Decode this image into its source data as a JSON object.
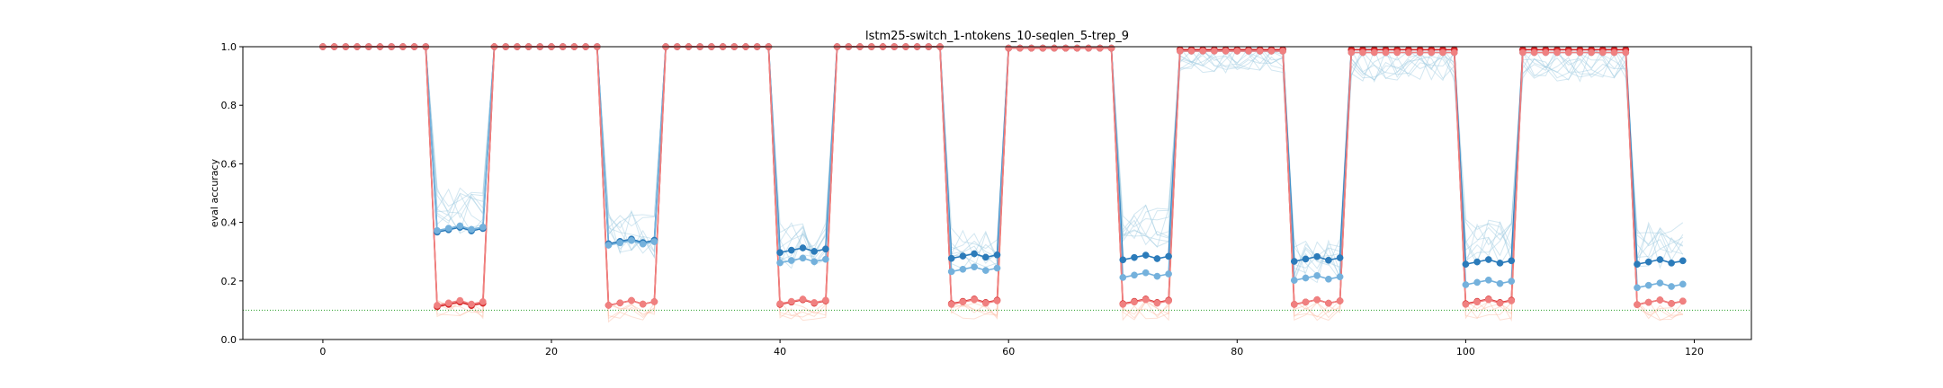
{
  "chart_data": {
    "type": "line",
    "title": "lstm25-switch_1-ntokens_10-seqlen_5-trep_9",
    "xlabel": "",
    "ylabel": "eval accuracy",
    "xlim": [
      -7,
      125
    ],
    "ylim": [
      0.0,
      1.0
    ],
    "xticks": [
      0,
      20,
      40,
      60,
      80,
      100,
      120
    ],
    "yticks": [
      0.0,
      0.2,
      0.4,
      0.6,
      0.8,
      1.0
    ],
    "xtick_labels": [
      "0",
      "20",
      "40",
      "60",
      "80",
      "100",
      "120"
    ],
    "ytick_labels": [
      "0.0",
      "0.2",
      "0.4",
      "0.6",
      "0.8",
      "1.0"
    ],
    "reference_line": {
      "y": 0.1,
      "color": "#2ca02c",
      "style": "dotted"
    },
    "segment_levels": {
      "phase_a_blocks": [
        [
          0,
          9
        ],
        [
          15,
          24
        ],
        [
          30,
          39
        ],
        [
          45,
          54
        ],
        [
          60,
          69
        ],
        [
          75,
          84
        ],
        [
          90,
          99
        ],
        [
          105,
          114
        ]
      ],
      "phase_b_blocks": [
        [
          10,
          14
        ],
        [
          25,
          29
        ],
        [
          40,
          44
        ],
        [
          55,
          59
        ],
        [
          70,
          74
        ],
        [
          85,
          89
        ],
        [
          100,
          104
        ],
        [
          115,
          119
        ]
      ],
      "phase_a_values": {
        "dark_blue": [
          1.0,
          1.0,
          1.0,
          1.0,
          0.995,
          0.99,
          0.99,
          0.99
        ],
        "light_blue": [
          1.0,
          1.0,
          1.0,
          1.0,
          0.995,
          0.985,
          0.98,
          0.98
        ],
        "dark_red": [
          1.0,
          1.0,
          1.0,
          1.0,
          0.995,
          0.99,
          0.99,
          0.99
        ],
        "light_red": [
          1.0,
          1.0,
          1.0,
          1.0,
          0.995,
          0.985,
          0.98,
          0.98
        ]
      },
      "phase_b_values": {
        "dark_blue": [
          0.375,
          0.335,
          0.305,
          0.285,
          0.28,
          0.275,
          0.265,
          0.265
        ],
        "light_blue": [
          0.38,
          0.33,
          0.27,
          0.24,
          0.22,
          0.21,
          0.195,
          0.185
        ],
        "dark_red": [
          0.12,
          0.125,
          0.128,
          0.13,
          0.13,
          0.128,
          0.13,
          0.127
        ],
        "light_red": [
          0.125,
          0.125,
          0.13,
          0.128,
          0.128,
          0.128,
          0.128,
          0.127
        ]
      }
    },
    "series": [
      {
        "key": "dark_blue",
        "color": "#2b7bba"
      },
      {
        "key": "light_blue",
        "color": "#74b1dc"
      },
      {
        "key": "dark_red",
        "color": "#d62728"
      },
      {
        "key": "light_red",
        "color": "#f08080"
      }
    ],
    "faint_runs": {
      "blue_color": "#9ecae1",
      "red_color": "#fcbba1",
      "blue_phase_b_levels": [
        0.44,
        0.36,
        0.32,
        0.3,
        0.38,
        0.27,
        0.33,
        0.32
      ],
      "blue_phase_a_dip": [
        0.0,
        0.0,
        0.0,
        0.0,
        0.0,
        0.09,
        0.12,
        0.12
      ],
      "red_phase_b_levels": [
        0.1,
        0.095,
        0.1,
        0.1,
        0.1,
        0.1,
        0.1,
        0.1
      ]
    }
  }
}
